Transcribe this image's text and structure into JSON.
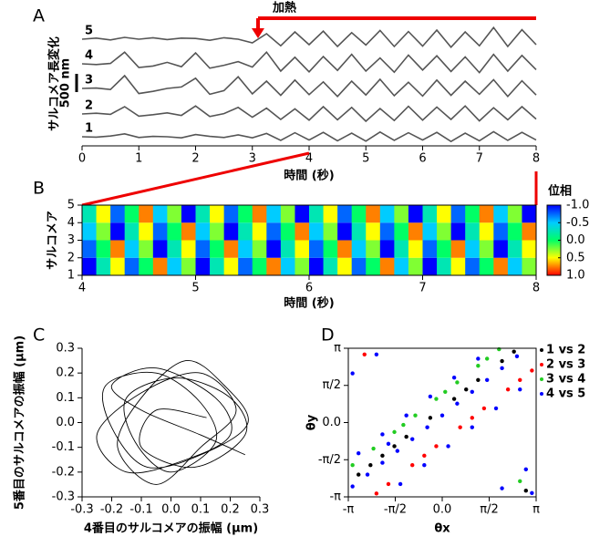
{
  "chart_data": [
    {
      "panel": "A",
      "type": "line",
      "xlabel": "時間 (秒)",
      "ylabel": "サルコメア長変化",
      "annotation": "加熱",
      "heating_start": 3.1,
      "scale_bar": {
        "value": 500,
        "label": "500 nm"
      },
      "xlim": [
        0,
        8
      ],
      "xticks": [
        0,
        1,
        2,
        3,
        4,
        5,
        6,
        7,
        8
      ],
      "x": [
        0,
        0.25,
        0.5,
        0.75,
        1,
        1.25,
        1.5,
        1.75,
        2,
        2.25,
        2.5,
        2.75,
        3,
        3.25,
        3.5,
        3.75,
        4,
        4.25,
        4.5,
        4.75,
        5,
        5.25,
        5.5,
        5.75,
        6,
        6.25,
        6.5,
        6.75,
        7,
        7.25,
        7.5,
        7.75,
        8
      ],
      "series": [
        {
          "name": "5",
          "color": "#555555",
          "values": [
            0,
            30,
            -20,
            50,
            0,
            40,
            -10,
            30,
            20,
            -30,
            40,
            0,
            -100,
            150,
            -180,
            200,
            -150,
            220,
            -200,
            180,
            -160,
            240,
            -200,
            210,
            -190,
            250,
            -220,
            200,
            -180,
            320,
            -200,
            260,
            -150
          ]
        },
        {
          "name": "4",
          "color": "#555555",
          "values": [
            0,
            -20,
            10,
            320,
            -100,
            -60,
            40,
            -80,
            300,
            -120,
            -40,
            60,
            -90,
            320,
            -200,
            180,
            -220,
            200,
            -180,
            260,
            -200,
            160,
            -230,
            240,
            -170,
            220,
            -210,
            190,
            -240,
            260,
            -200,
            230,
            -160
          ]
        },
        {
          "name": "3",
          "color": "#555555",
          "values": [
            0,
            10,
            -30,
            350,
            -140,
            -80,
            0,
            40,
            280,
            -160,
            -60,
            320,
            -150,
            200,
            -190,
            230,
            -170,
            180,
            -220,
            200,
            -180,
            250,
            -200,
            170,
            -210,
            230,
            -190,
            200,
            -160,
            240,
            -220,
            210,
            -180
          ]
        },
        {
          "name": "2",
          "color": "#555555",
          "values": [
            0,
            20,
            -10,
            200,
            -60,
            -20,
            30,
            -40,
            220,
            -70,
            10,
            180,
            -90,
            160,
            -150,
            140,
            -170,
            200,
            -160,
            180,
            -200,
            150,
            -180,
            210,
            -170,
            190,
            -150,
            220,
            -190,
            170,
            -160,
            200,
            -140
          ]
        },
        {
          "name": "1",
          "color": "#555555",
          "values": [
            0,
            -10,
            20,
            80,
            -20,
            10,
            0,
            -30,
            60,
            10,
            -20,
            50,
            -30,
            90,
            -100,
            110,
            -90,
            120,
            -110,
            100,
            -120,
            130,
            -100,
            110,
            -90,
            120,
            -130,
            100,
            -110,
            140,
            -100,
            120,
            -90
          ]
        }
      ]
    },
    {
      "panel": "B",
      "type": "heatmap",
      "xlabel": "時間 (秒)",
      "ylabel": "サルコメア",
      "colorbar_label": "位相",
      "xlim": [
        4,
        8
      ],
      "xticks": [
        4,
        5,
        6,
        7,
        8
      ],
      "ylim": [
        1,
        5
      ],
      "yticks": [
        1,
        2,
        3,
        4,
        5
      ],
      "clim": [
        -1,
        1
      ],
      "colormap": [
        "#0000ff",
        "#00ccff",
        "#00ff66",
        "#ffff00",
        "#ff0000"
      ],
      "cticks": [
        {
          "value": -1,
          "label": "-1.0"
        },
        {
          "value": -0.5,
          "label": "-0.5"
        },
        {
          "value": 0,
          "label": "0.0"
        },
        {
          "value": 0.5,
          "label": "0.5"
        },
        {
          "value": 1,
          "label": "1.0"
        }
      ],
      "values": [
        [
          -1,
          -0.25,
          0.5,
          -0.75,
          0,
          0.75,
          -0.5,
          0.25,
          -1,
          -0.25,
          0.5,
          -0.75,
          0,
          0.75,
          -0.5,
          0.25,
          -1,
          -0.25,
          0.5,
          -0.75,
          0,
          0.75,
          -0.5,
          0.25,
          -1,
          -0.25,
          0.5,
          -0.75,
          0,
          0.75,
          -0.5,
          0.25
        ],
        [
          -0.75,
          0,
          0.75,
          -0.5,
          0.25,
          -1,
          -0.25,
          0.5,
          -0.75,
          0,
          0.75,
          -0.5,
          0.25,
          -1,
          -0.25,
          0.5,
          -0.75,
          0,
          0.75,
          -0.5,
          0.25,
          -1,
          -0.25,
          0.5,
          -0.75,
          0,
          0.75,
          -0.5,
          0.25,
          -1,
          -0.25,
          0.5
        ],
        [
          -0.5,
          0.25,
          -1,
          -0.25,
          0.5,
          -0.75,
          0,
          0.75,
          -0.5,
          0.25,
          -1,
          -0.25,
          0.5,
          -0.75,
          0,
          0.75,
          -0.5,
          0.25,
          -1,
          -0.25,
          0.5,
          -0.75,
          0,
          0.75,
          -0.5,
          0.25,
          -1,
          -0.25,
          0.5,
          -0.75,
          0,
          0.75
        ],
        [
          -0.25,
          0.5,
          -0.75,
          0,
          0.75,
          -0.5,
          0.25,
          -1,
          -0.25,
          0.5,
          -0.75,
          0,
          0.75,
          -0.5,
          0.25,
          -1,
          -0.25,
          0.5,
          -0.75,
          0,
          0.75,
          -0.5,
          0.25,
          -1,
          -0.25,
          0.5,
          -0.75,
          0,
          0.75,
          -0.5,
          0.25,
          -1
        ]
      ]
    },
    {
      "panel": "C",
      "type": "line",
      "xlabel": "4番目のサルコメアの振幅 (μm)",
      "ylabel": "5番目のサルコメアの振幅 (μm)",
      "color": "#000000",
      "xlim": [
        -0.3,
        0.3
      ],
      "ylim": [
        -0.3,
        0.3
      ],
      "xticks": [
        -0.3,
        -0.2,
        -0.1,
        {
          "value": 0,
          "label": "0.0"
        },
        0.1,
        0.2,
        0.3
      ],
      "yticks": [
        -0.3,
        -0.2,
        -0.1,
        {
          "value": 0,
          "label": "0.0"
        },
        0.1,
        0.2,
        0.3
      ],
      "x": [
        0.25,
        0.1,
        -0.1,
        -0.2,
        -0.05,
        0.15,
        0.2,
        0.05,
        -0.15,
        -0.25,
        -0.1,
        0.1,
        0.22,
        0.1,
        -0.05,
        -0.18,
        -0.1,
        0.05,
        0.18,
        0.26,
        0.12,
        -0.08,
        -0.2,
        -0.22,
        -0.05,
        0.1,
        0.15,
        0.0,
        -0.12,
        -0.15,
        0.02,
        0.2,
        0.25,
        0.08,
        -0.1,
        -0.05,
        0.12
      ],
      "values": [
        -0.13,
        -0.05,
        0.05,
        0.15,
        0.22,
        0.1,
        -0.05,
        -0.15,
        -0.2,
        -0.05,
        0.12,
        0.2,
        0.05,
        -0.1,
        -0.25,
        -0.1,
        0.1,
        0.25,
        0.15,
        0.0,
        -0.12,
        -0.18,
        -0.02,
        0.15,
        0.2,
        0.08,
        -0.08,
        -0.2,
        -0.08,
        0.1,
        0.18,
        0.1,
        -0.05,
        -0.18,
        -0.1,
        0.05,
        0.02
      ]
    },
    {
      "panel": "D",
      "type": "scatter",
      "xlabel": "θx",
      "ylabel": "θy",
      "legend": "upper right",
      "xlim": [
        -3.14159,
        3.14159
      ],
      "ylim": [
        -3.14159,
        3.14159
      ],
      "xticks": [
        {
          "value": -3.14159,
          "label": "-π"
        },
        {
          "value": -1.5708,
          "label": "-π/2"
        },
        {
          "value": 0,
          "label": "0.0"
        },
        {
          "value": 1.5708,
          "label": "π/2"
        },
        {
          "value": 3.14159,
          "label": "π"
        }
      ],
      "yticks": [
        {
          "value": -3.14159,
          "label": "-π"
        },
        {
          "value": -1.5708,
          "label": "-π/2"
        },
        {
          "value": 0,
          "label": "0.0"
        },
        {
          "value": 1.5708,
          "label": "π/2"
        },
        {
          "value": 3.14159,
          "label": "π"
        }
      ],
      "series": [
        {
          "name": "1 vs 2",
          "color": "#000000",
          "x": [
            -2.8,
            -2.0,
            -1.2,
            -0.4,
            0.4,
            1.2,
            2.0,
            2.8,
            -1.6,
            0.8,
            2.4,
            -2.4
          ],
          "values": [
            -2.2,
            -1.4,
            -0.6,
            0.2,
            1.0,
            1.8,
            2.6,
            -2.88,
            -1.0,
            1.4,
            3.0,
            -1.8
          ]
        },
        {
          "name": "2 vs 3",
          "color": "#ff0000",
          "x": [
            -2.6,
            -1.8,
            -1.0,
            -0.2,
            0.6,
            1.4,
            2.2,
            3.0,
            -2.2,
            -0.6,
            1.0,
            2.6
          ],
          "values": [
            2.88,
            -2.6,
            -1.8,
            -1.0,
            -0.2,
            0.6,
            1.4,
            2.2,
            -3.0,
            -1.4,
            0.2,
            1.8
          ]
        },
        {
          "name": "3 vs 4",
          "color": "#22cc22",
          "x": [
            -3.0,
            -2.3,
            -1.6,
            -0.9,
            -0.2,
            0.5,
            1.2,
            1.9,
            2.6,
            -1.3,
            0.1,
            1.5
          ],
          "values": [
            -1.8,
            -1.1,
            -0.4,
            0.3,
            1.0,
            1.7,
            2.4,
            3.1,
            -2.48,
            -0.1,
            1.3,
            2.7
          ]
        },
        {
          "name": "4 vs 5",
          "color": "#0000ff",
          "x": [
            -3.0,
            -2.5,
            -2.0,
            -1.5,
            -1.0,
            -0.5,
            0,
            0.5,
            1.0,
            1.5,
            2.0,
            2.5,
            3.0,
            -3.0,
            -2.2,
            -1.4,
            -0.6,
            0.2,
            1.0,
            1.8,
            2.6,
            -2.8,
            -2.0,
            -1.2,
            -0.4,
            0.4,
            1.2,
            2.0,
            2.8,
            -1.8
          ],
          "values": [
            -2.7,
            -2.2,
            -1.7,
            -1.2,
            -0.7,
            -0.2,
            0.3,
            0.8,
            1.3,
            1.8,
            2.3,
            2.8,
            -2.98,
            2.08,
            2.88,
            -2.6,
            -1.8,
            -1.0,
            -0.2,
            0.6,
            1.4,
            -1.3,
            -0.5,
            0.3,
            1.1,
            1.9,
            2.7,
            -2.78,
            -1.98,
            -0.9
          ]
        }
      ]
    }
  ]
}
